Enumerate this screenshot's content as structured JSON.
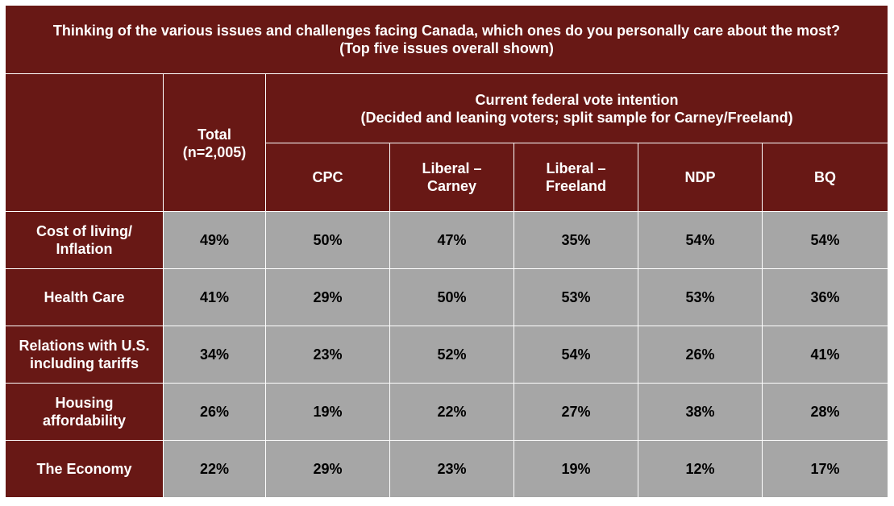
{
  "chart_data": {
    "type": "table",
    "title": {
      "line1": "Thinking of the various issues and challenges facing Canada, which ones do you personally care about the most?",
      "line2": "(Top five issues overall shown)"
    },
    "total_header": {
      "line1": "Total",
      "line2": "(n=2,005)"
    },
    "group_header": {
      "line1": "Current federal vote intention",
      "line2": "(Decided and leaning voters; split sample for Carney/Freeland)"
    },
    "columns": [
      {
        "line1": "CPC",
        "line2": ""
      },
      {
        "line1": "Liberal –",
        "line2": "Carney"
      },
      {
        "line1": "Liberal –",
        "line2": "Freeland"
      },
      {
        "line1": "NDP",
        "line2": ""
      },
      {
        "line1": "BQ",
        "line2": ""
      }
    ],
    "rows": [
      {
        "label1": "Cost of living/",
        "label2": "Inflation",
        "values": [
          "49%",
          "50%",
          "47%",
          "35%",
          "54%",
          "54%"
        ]
      },
      {
        "label1": "Health Care",
        "label2": "",
        "values": [
          "41%",
          "29%",
          "50%",
          "53%",
          "53%",
          "36%"
        ]
      },
      {
        "label1": "Relations with U.S.",
        "label2": "including tariffs",
        "values": [
          "34%",
          "23%",
          "52%",
          "54%",
          "26%",
          "41%"
        ]
      },
      {
        "label1": "Housing",
        "label2": "affordability",
        "values": [
          "26%",
          "19%",
          "22%",
          "27%",
          "38%",
          "28%"
        ]
      },
      {
        "label1": "The Economy",
        "label2": "",
        "values": [
          "22%",
          "29%",
          "23%",
          "19%",
          "12%",
          "17%"
        ]
      }
    ],
    "colors": {
      "header_bg": "#681815",
      "cell_bg": "#a6a6a6",
      "header_text": "#ffffff",
      "cell_text": "#000000"
    }
  }
}
